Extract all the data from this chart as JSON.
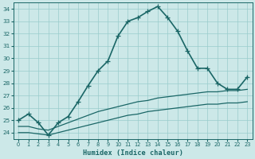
{
  "xlabel": "Humidex (Indice chaleur)",
  "xlim": [
    -0.5,
    23.5
  ],
  "ylim": [
    23.5,
    34.5
  ],
  "yticks": [
    24,
    25,
    26,
    27,
    28,
    29,
    30,
    31,
    32,
    33,
    34
  ],
  "xticks": [
    0,
    1,
    2,
    3,
    4,
    5,
    6,
    7,
    8,
    9,
    10,
    11,
    12,
    13,
    14,
    15,
    16,
    17,
    18,
    19,
    20,
    21,
    22,
    23
  ],
  "bg_color": "#cce8e8",
  "grid_color": "#99cccc",
  "line_color": "#1a6666",
  "lines": [
    {
      "x": [
        0,
        1,
        2,
        3,
        4,
        5,
        6,
        7,
        8,
        9,
        10,
        11,
        12,
        13,
        14,
        15,
        16,
        17,
        18,
        19,
        20,
        21,
        22,
        23
      ],
      "y": [
        25.0,
        25.5,
        24.8,
        23.8,
        24.8,
        25.3,
        26.5,
        27.8,
        29.0,
        29.8,
        31.8,
        33.0,
        33.3,
        33.8,
        34.2,
        33.3,
        32.2,
        30.6,
        29.2,
        29.2,
        28.0,
        27.5,
        27.5,
        28.5
      ],
      "marker": "+",
      "linewidth": 1.2,
      "markersize": 4
    },
    {
      "x": [
        0,
        1,
        2,
        3,
        4,
        5,
        6,
        7,
        8,
        9,
        10,
        11,
        12,
        13,
        14,
        15,
        16,
        17,
        18,
        19,
        20,
        21,
        22,
        23
      ],
      "y": [
        24.5,
        24.5,
        24.3,
        24.2,
        24.5,
        24.8,
        25.1,
        25.4,
        25.7,
        25.9,
        26.1,
        26.3,
        26.5,
        26.6,
        26.8,
        26.9,
        27.0,
        27.1,
        27.2,
        27.3,
        27.3,
        27.4,
        27.4,
        27.5
      ],
      "marker": null,
      "linewidth": 0.9,
      "markersize": 0
    },
    {
      "x": [
        0,
        1,
        2,
        3,
        4,
        5,
        6,
        7,
        8,
        9,
        10,
        11,
        12,
        13,
        14,
        15,
        16,
        17,
        18,
        19,
        20,
        21,
        22,
        23
      ],
      "y": [
        24.0,
        24.0,
        23.9,
        23.8,
        24.0,
        24.2,
        24.4,
        24.6,
        24.8,
        25.0,
        25.2,
        25.4,
        25.5,
        25.7,
        25.8,
        25.9,
        26.0,
        26.1,
        26.2,
        26.3,
        26.3,
        26.4,
        26.4,
        26.5
      ],
      "marker": null,
      "linewidth": 0.9,
      "markersize": 0
    }
  ]
}
